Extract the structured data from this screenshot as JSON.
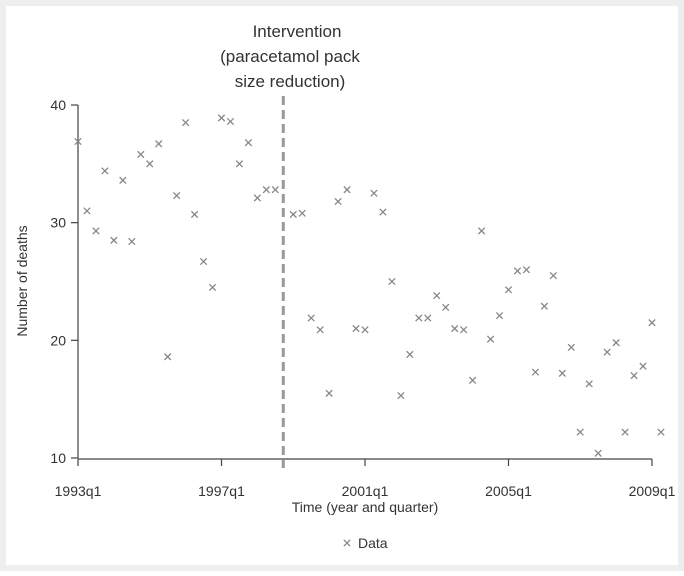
{
  "chart_data": {
    "type": "scatter",
    "title": "",
    "xlabel": "Time (year and quarter)",
    "ylabel": "Number of deaths",
    "x_ticks": [
      "1993q1",
      "1997q1",
      "2001q1",
      "2005q1",
      "2009q1"
    ],
    "x_tick_values": [
      1993.0,
      1997.0,
      2001.0,
      2005.0,
      2009.0
    ],
    "y_ticks": [
      "10",
      "20",
      "30",
      "40"
    ],
    "y_tick_values": [
      10,
      20,
      30,
      40
    ],
    "xlim": [
      1993.0,
      2009.0
    ],
    "ylim": [
      10,
      40
    ],
    "grid": false,
    "legend": {
      "position": "bottom-center",
      "entries": [
        "Data"
      ]
    },
    "annotation": {
      "lines": [
        "Intervention",
        "(paracetamol pack",
        "size reduction)"
      ],
      "x": 1998.75,
      "style": "dashed-vertical"
    },
    "colors": {
      "background": "#eeeeee",
      "plot_area": "#ffffff",
      "marker": "#888888",
      "intervention_line": "#999999",
      "axis": "#444444"
    },
    "series": [
      {
        "name": "Data",
        "marker": "x",
        "points": [
          [
            1993.0,
            36.9
          ],
          [
            1993.25,
            31.0
          ],
          [
            1993.5,
            29.3
          ],
          [
            1993.75,
            34.4
          ],
          [
            1994.0,
            28.5
          ],
          [
            1994.25,
            33.6
          ],
          [
            1994.5,
            28.4
          ],
          [
            1994.75,
            35.8
          ],
          [
            1995.0,
            35.0
          ],
          [
            1995.25,
            36.7
          ],
          [
            1995.5,
            18.6
          ],
          [
            1995.75,
            32.3
          ],
          [
            1996.0,
            38.5
          ],
          [
            1996.25,
            30.7
          ],
          [
            1996.5,
            26.7
          ],
          [
            1996.75,
            24.5
          ],
          [
            1997.0,
            38.9
          ],
          [
            1997.25,
            38.6
          ],
          [
            1997.5,
            35.0
          ],
          [
            1997.75,
            36.8
          ],
          [
            1998.0,
            32.1
          ],
          [
            1998.25,
            32.8
          ],
          [
            1998.5,
            32.8
          ],
          [
            1999.0,
            30.7
          ],
          [
            1999.25,
            30.8
          ],
          [
            1999.5,
            21.9
          ],
          [
            1999.75,
            20.9
          ],
          [
            2000.0,
            15.5
          ],
          [
            2000.25,
            31.8
          ],
          [
            2000.5,
            32.8
          ],
          [
            2000.75,
            21.0
          ],
          [
            2001.0,
            20.9
          ],
          [
            2001.25,
            32.5
          ],
          [
            2001.5,
            30.9
          ],
          [
            2001.75,
            25.0
          ],
          [
            2002.0,
            15.3
          ],
          [
            2002.25,
            18.8
          ],
          [
            2002.5,
            21.9
          ],
          [
            2002.75,
            21.9
          ],
          [
            2003.0,
            23.8
          ],
          [
            2003.25,
            22.8
          ],
          [
            2003.5,
            21.0
          ],
          [
            2003.75,
            20.9
          ],
          [
            2004.0,
            16.6
          ],
          [
            2004.25,
            29.3
          ],
          [
            2004.5,
            20.1
          ],
          [
            2004.75,
            22.1
          ],
          [
            2005.0,
            24.3
          ],
          [
            2005.25,
            25.9
          ],
          [
            2005.5,
            26.0
          ],
          [
            2005.75,
            17.3
          ],
          [
            2006.0,
            22.9
          ],
          [
            2006.25,
            25.5
          ],
          [
            2006.5,
            17.2
          ],
          [
            2006.75,
            19.4
          ],
          [
            2007.0,
            12.2
          ],
          [
            2007.25,
            16.3
          ],
          [
            2007.5,
            10.4
          ],
          [
            2007.75,
            19.0
          ],
          [
            2008.0,
            19.8
          ],
          [
            2008.25,
            12.2
          ],
          [
            2008.5,
            17.0
          ],
          [
            2008.75,
            17.8
          ],
          [
            2009.0,
            21.5
          ],
          [
            2009.25,
            12.2
          ]
        ]
      }
    ]
  }
}
